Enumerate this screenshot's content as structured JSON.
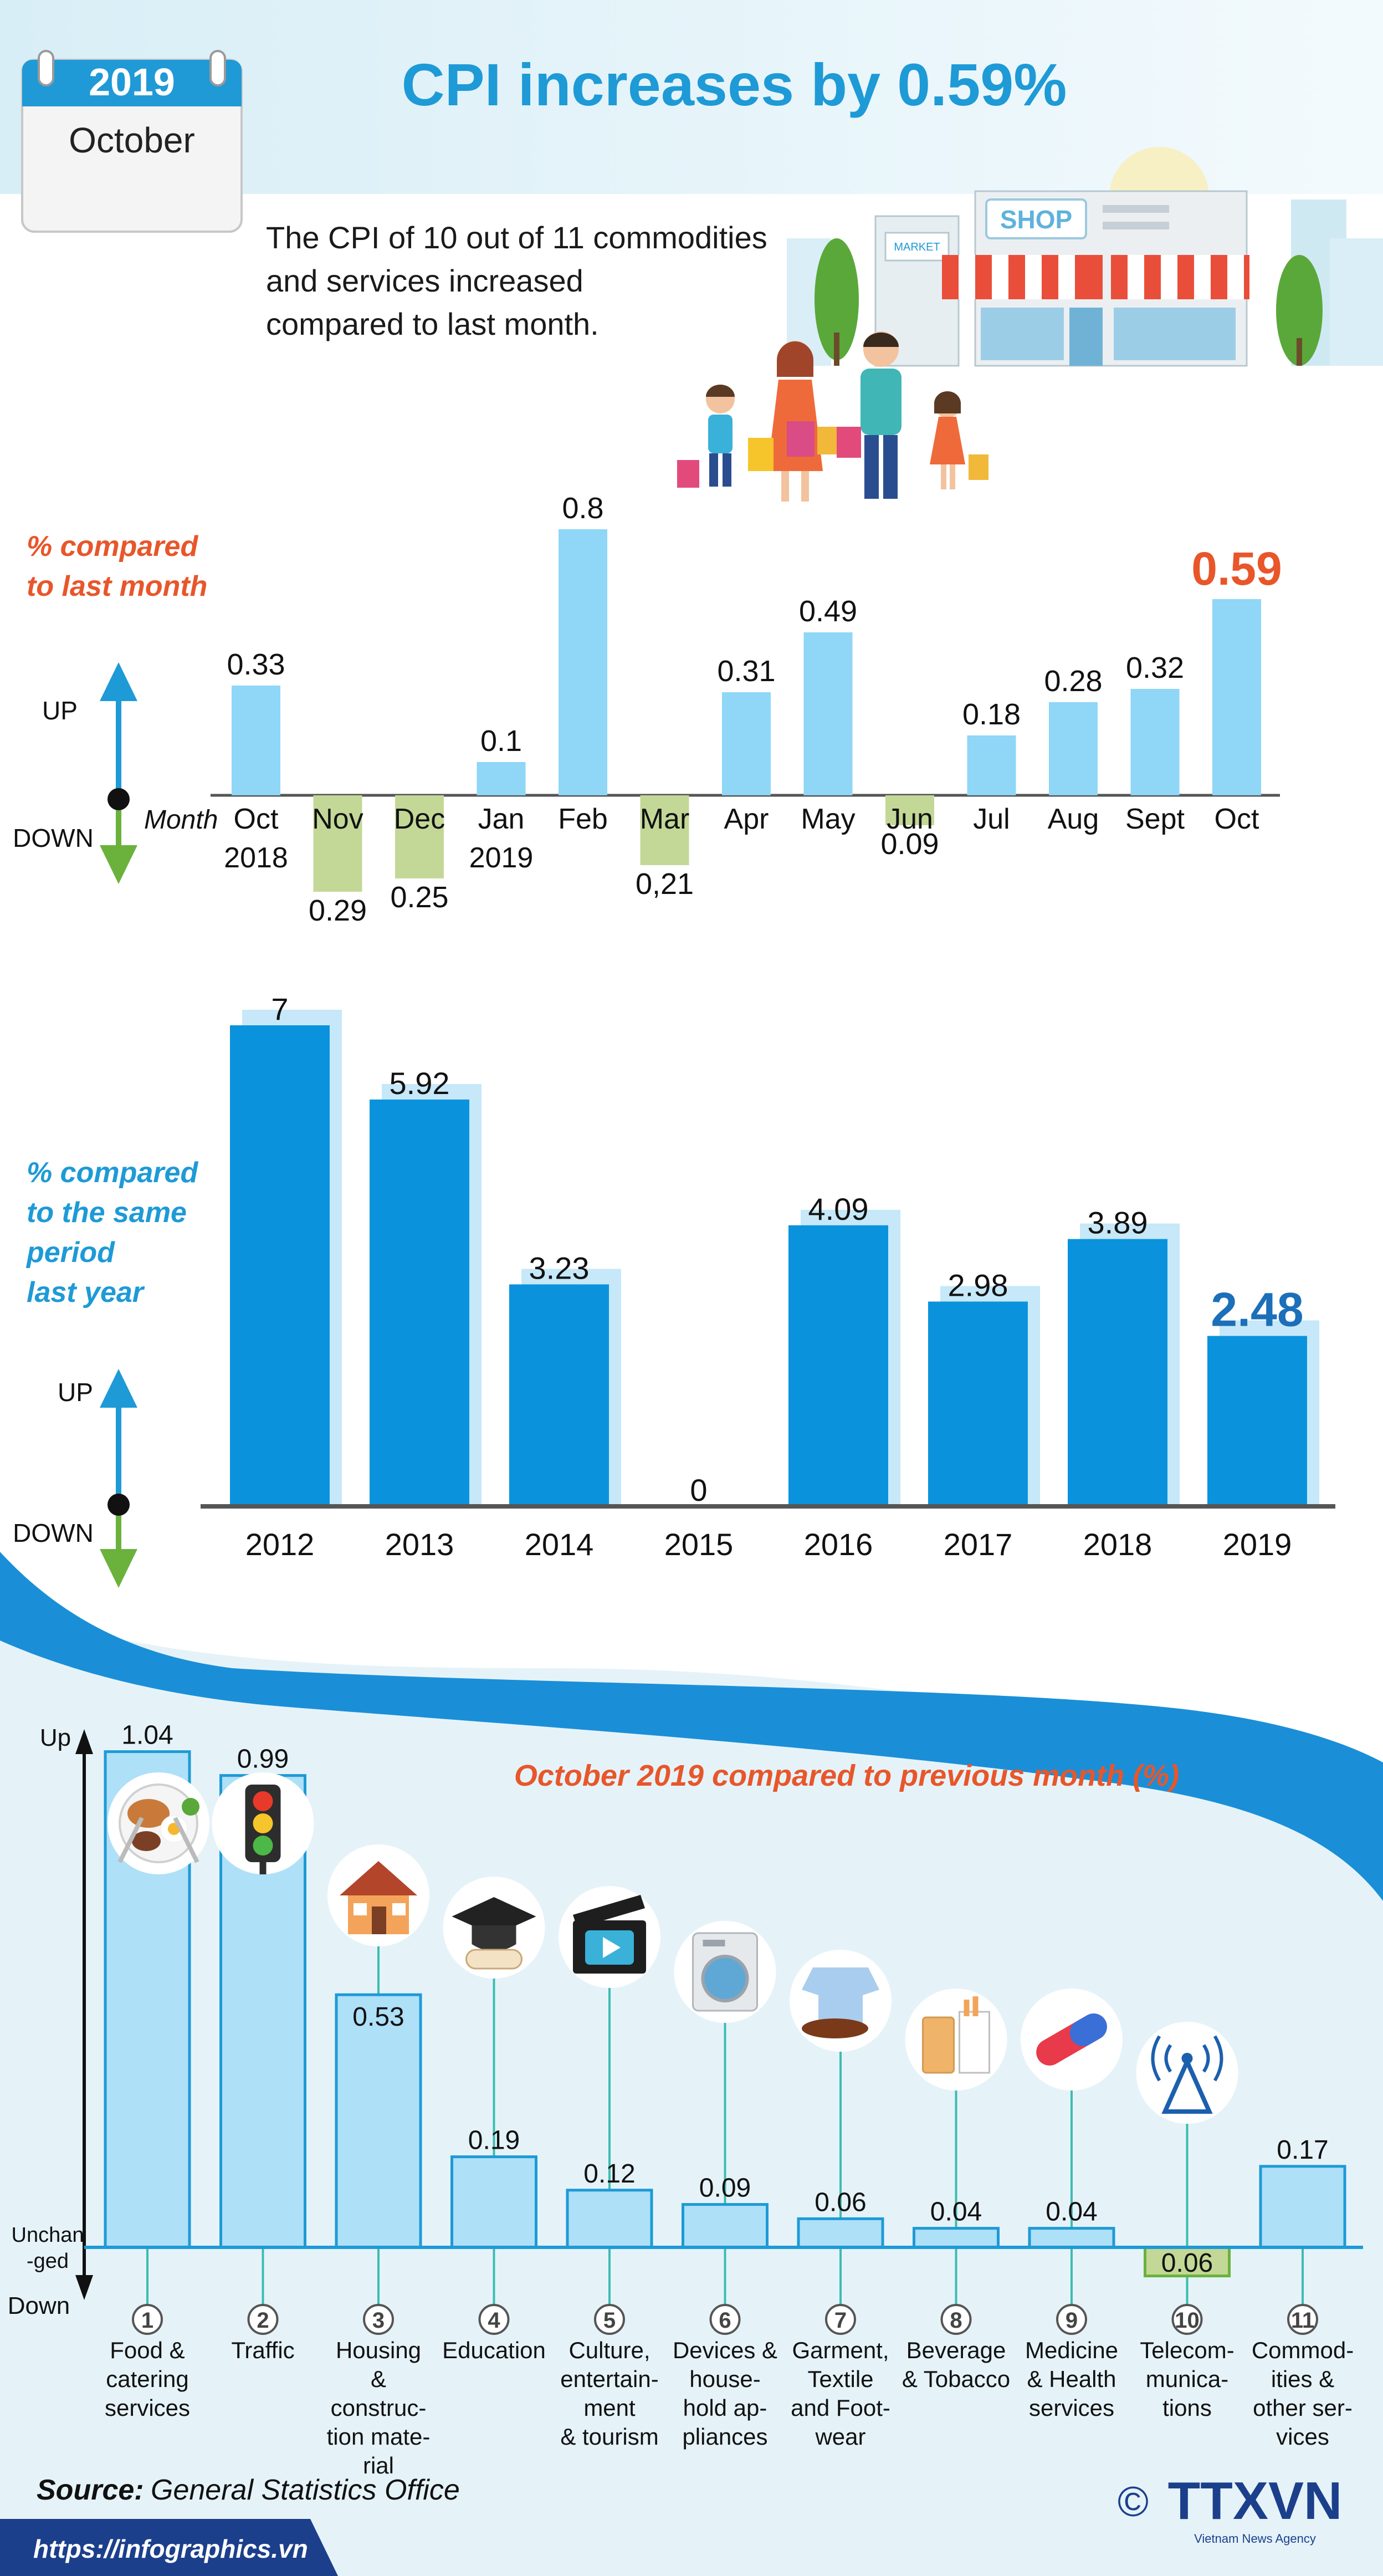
{
  "header": {
    "calendar_year": "2019",
    "calendar_month": "October",
    "title": "CPI increases by 0.59%",
    "intro_lines": [
      "The CPI of 10 out of 11 commodities",
      "and services increased",
      "compared to last month."
    ],
    "shop_sign": "SHOP",
    "market_sign": "MARKET"
  },
  "colors": {
    "title_blue": "#1e9ad6",
    "orange_accent": "#e8562a",
    "light_blue_bar": "#8fd6f7",
    "green_bar": "#c3d896",
    "dark_blue_bar": "#0a93dc",
    "navy": "#1c3f8c"
  },
  "monthly_chart": {
    "side_label_lines": [
      "% compared",
      "to last month"
    ],
    "up_label": "UP",
    "down_label": "DOWN",
    "axis_label": "Month"
  },
  "yearly_chart": {
    "side_label_lines": [
      "% compared",
      "to the same",
      "period",
      "last year"
    ],
    "up_label": "UP",
    "down_label": "DOWN"
  },
  "category_chart": {
    "title": "October 2019 compared to previous month (%)",
    "up_label": "Up",
    "unchanged_label_lines": [
      "Unchan",
      "-ged"
    ],
    "down_label": "Down"
  },
  "chart_data": [
    {
      "id": "monthly",
      "type": "bar",
      "categories": [
        "Oct\n2018",
        "Nov",
        "Dec",
        "Jan\n2019",
        "Feb",
        "Mar",
        "Apr",
        "May",
        "Jun",
        "Jul",
        "Aug",
        "Sept",
        "Oct"
      ],
      "values": [
        0.33,
        -0.29,
        -0.25,
        0.1,
        0.8,
        -0.21,
        0.31,
        0.49,
        -0.09,
        0.18,
        0.28,
        0.32,
        0.59
      ],
      "labels": [
        "0.33",
        "0.29",
        "0.25",
        "0.1",
        "0.8",
        "0,21",
        "0.31",
        "0.49",
        "0.09",
        "0.18",
        "0.28",
        "0.32",
        "0.59"
      ],
      "ylim": [
        -0.35,
        0.85
      ],
      "highlight_last": true
    },
    {
      "id": "yearly",
      "type": "bar",
      "categories": [
        "2012",
        "2013",
        "2014",
        "2015",
        "2016",
        "2017",
        "2018",
        "2019"
      ],
      "values": [
        7,
        5.92,
        3.23,
        0,
        4.09,
        2.98,
        3.89,
        2.48
      ],
      "labels": [
        "7",
        "5.92",
        "3.23",
        "0",
        "4.09",
        "2.98",
        "3.89",
        "2.48"
      ],
      "ylim": [
        0,
        7.2
      ],
      "highlight_last": true
    },
    {
      "id": "categories",
      "type": "bar",
      "categories": [
        {
          "num": "1",
          "lines": [
            "Food &",
            "catering",
            "services"
          ]
        },
        {
          "num": "2",
          "lines": [
            "Traffic"
          ]
        },
        {
          "num": "3",
          "lines": [
            "Housing",
            "&",
            "construc-",
            "tion mate-",
            "rial"
          ]
        },
        {
          "num": "4",
          "lines": [
            "Education"
          ]
        },
        {
          "num": "5",
          "lines": [
            "Culture,",
            "entertain-",
            "ment",
            "& tourism"
          ]
        },
        {
          "num": "6",
          "lines": [
            "Devices &",
            "house-",
            "hold ap-",
            "pliances"
          ]
        },
        {
          "num": "7",
          "lines": [
            "Garment,",
            "Textile",
            "and Foot-",
            "wear"
          ]
        },
        {
          "num": "8",
          "lines": [
            "Beverage",
            "& Tobacco"
          ]
        },
        {
          "num": "9",
          "lines": [
            "Medicine",
            "& Health",
            "services"
          ]
        },
        {
          "num": "10",
          "lines": [
            "Telecom-",
            "munica-",
            "tions"
          ]
        },
        {
          "num": "11",
          "lines": [
            "Commod-",
            "ities &",
            "other ser-",
            "vices"
          ]
        }
      ],
      "values": [
        1.04,
        0.99,
        0.53,
        0.19,
        0.12,
        0.09,
        0.06,
        0.04,
        0.04,
        -0.06,
        0.17
      ],
      "labels": [
        "1.04",
        "0.99",
        "0.53",
        "0.19",
        "0.12",
        "0.09",
        "0.06",
        "0.04",
        "0.04",
        "0.06",
        "0.17"
      ],
      "icons": [
        "food-icon",
        "traffic-light-icon",
        "house-icon",
        "graduation-cap-icon",
        "clapperboard-icon",
        "washing-machine-icon",
        "shirt-shoes-icon",
        "beverage-icon",
        "pill-icon",
        "antenna-icon",
        ""
      ],
      "ylim": [
        -0.06,
        1.04
      ]
    }
  ],
  "footer": {
    "source_label": "Source:",
    "source_value": "General Statistics Office",
    "url": "https://infographics.vn",
    "copyright": "©",
    "logo": "TTXVN",
    "logo_sub": "Vietnam News Agency"
  }
}
